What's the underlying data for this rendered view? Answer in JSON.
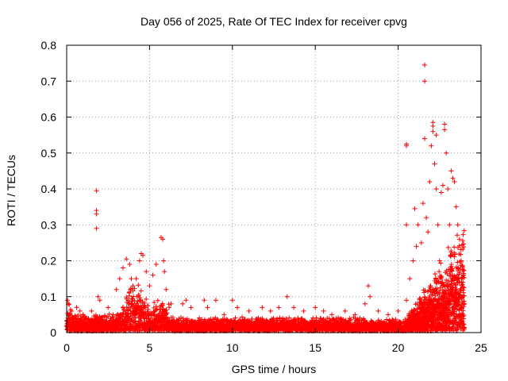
{
  "chart_data": {
    "type": "scatter",
    "title": "Day 056 of 2025, Rate Of TEC Index for receiver cpvg",
    "xlabel": "GPS time / hours",
    "ylabel": "ROTI / TECUs",
    "xlim": [
      0,
      25
    ],
    "ylim": [
      0,
      0.8
    ],
    "x_ticks": [
      0,
      5,
      10,
      15,
      20,
      25
    ],
    "y_ticks": [
      0,
      0.1,
      0.2,
      0.3,
      0.4,
      0.5,
      0.6,
      0.7,
      0.8
    ],
    "x_tick_labels": [
      "0",
      "5",
      "10",
      "15",
      "20",
      "25"
    ],
    "y_tick_labels": [
      "0",
      "0.1",
      "0.2",
      "0.3",
      "0.4",
      "0.5",
      "0.6",
      "0.7",
      "0.8"
    ],
    "grid": true,
    "marker": "+",
    "marker_color": "#ff0000",
    "series": [
      {
        "name": "ROTI",
        "points": [
          [
            0.05,
            0.09
          ],
          [
            0.1,
            0.08
          ],
          [
            0.15,
            0.05
          ],
          [
            0.3,
            0.06
          ],
          [
            0.6,
            0.07
          ],
          [
            0.8,
            0.06
          ],
          [
            1.0,
            0.05
          ],
          [
            1.5,
            0.06
          ],
          [
            1.8,
            0.395
          ],
          [
            1.8,
            0.34
          ],
          [
            1.8,
            0.33
          ],
          [
            1.8,
            0.29
          ],
          [
            1.9,
            0.1
          ],
          [
            2.0,
            0.09
          ],
          [
            2.5,
            0.07
          ],
          [
            3.0,
            0.12
          ],
          [
            3.2,
            0.15
          ],
          [
            3.4,
            0.18
          ],
          [
            3.6,
            0.205
          ],
          [
            3.8,
            0.19
          ],
          [
            3.9,
            0.15
          ],
          [
            4.0,
            0.13
          ],
          [
            4.2,
            0.15
          ],
          [
            4.4,
            0.2
          ],
          [
            4.5,
            0.22
          ],
          [
            4.6,
            0.215
          ],
          [
            4.8,
            0.17
          ],
          [
            5.0,
            0.13
          ],
          [
            5.2,
            0.16
          ],
          [
            5.4,
            0.19
          ],
          [
            5.7,
            0.265
          ],
          [
            5.8,
            0.26
          ],
          [
            5.85,
            0.2
          ],
          [
            5.9,
            0.17
          ],
          [
            6.0,
            0.12
          ],
          [
            6.3,
            0.08
          ],
          [
            7.0,
            0.08
          ],
          [
            7.2,
            0.09
          ],
          [
            7.5,
            0.07
          ],
          [
            8.3,
            0.09
          ],
          [
            8.5,
            0.07
          ],
          [
            9.0,
            0.09
          ],
          [
            9.5,
            0.05
          ],
          [
            10.0,
            0.09
          ],
          [
            10.3,
            0.07
          ],
          [
            11.0,
            0.06
          ],
          [
            11.8,
            0.07
          ],
          [
            12.3,
            0.06
          ],
          [
            12.8,
            0.07
          ],
          [
            13.3,
            0.1
          ],
          [
            13.7,
            0.07
          ],
          [
            14.3,
            0.06
          ],
          [
            15.0,
            0.07
          ],
          [
            15.5,
            0.06
          ],
          [
            16.0,
            0.05
          ],
          [
            16.8,
            0.06
          ],
          [
            17.4,
            0.05
          ],
          [
            18.0,
            0.08
          ],
          [
            18.2,
            0.13
          ],
          [
            18.3,
            0.1
          ],
          [
            18.8,
            0.06
          ],
          [
            19.4,
            0.05
          ],
          [
            20.0,
            0.06
          ],
          [
            20.5,
            0.09
          ],
          [
            20.5,
            0.3
          ],
          [
            20.5,
            0.525
          ],
          [
            20.5,
            0.52
          ],
          [
            20.7,
            0.15
          ],
          [
            20.9,
            0.2
          ],
          [
            21.0,
            0.345
          ],
          [
            21.1,
            0.24
          ],
          [
            21.2,
            0.3
          ],
          [
            21.4,
            0.25
          ],
          [
            21.5,
            0.36
          ],
          [
            21.6,
            0.54
          ],
          [
            21.6,
            0.745
          ],
          [
            21.6,
            0.7
          ],
          [
            21.7,
            0.32
          ],
          [
            21.8,
            0.28
          ],
          [
            21.9,
            0.42
          ],
          [
            22.0,
            0.52
          ],
          [
            22.1,
            0.56
          ],
          [
            22.1,
            0.585
          ],
          [
            22.1,
            0.575
          ],
          [
            22.2,
            0.47
          ],
          [
            22.3,
            0.55
          ],
          [
            22.3,
            0.4
          ],
          [
            22.4,
            0.3
          ],
          [
            22.5,
            0.2
          ],
          [
            22.6,
            0.39
          ],
          [
            22.7,
            0.41
          ],
          [
            22.8,
            0.58
          ],
          [
            22.8,
            0.565
          ],
          [
            22.9,
            0.5
          ],
          [
            23.0,
            0.4
          ],
          [
            23.1,
            0.3
          ],
          [
            23.2,
            0.45
          ],
          [
            23.3,
            0.43
          ],
          [
            23.4,
            0.42
          ],
          [
            23.5,
            0.35
          ],
          [
            23.6,
            0.3
          ],
          [
            23.7,
            0.26
          ],
          [
            23.8,
            0.2
          ],
          [
            23.9,
            0.1
          ],
          [
            24.0,
            0.08
          ]
        ]
      }
    ]
  }
}
